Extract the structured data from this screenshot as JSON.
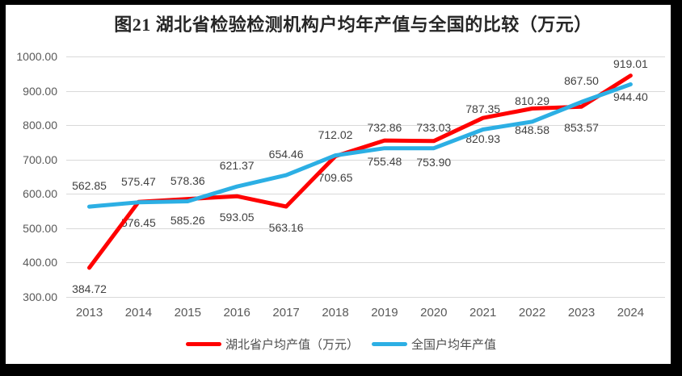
{
  "title": "图21 湖北省检验检测机构户均年产值与全国的比较（万元）",
  "chart_data": {
    "type": "line",
    "title": "图21 湖北省检验检测机构户均年产值与全国的比较（万元）",
    "categories": [
      "2013",
      "2014",
      "2015",
      "2016",
      "2017",
      "2018",
      "2019",
      "2020",
      "2021",
      "2022",
      "2023",
      "2024"
    ],
    "series": [
      {
        "name": "湖北省户均产值（万元）",
        "color": "#FF0000",
        "label_position": "below",
        "values": [
          384.72,
          576.45,
          585.26,
          593.05,
          563.16,
          709.65,
          755.48,
          753.9,
          820.93,
          848.58,
          853.57,
          944.4
        ]
      },
      {
        "name": "全国户均年产值",
        "color": "#2CAFE4",
        "label_position": "above",
        "values": [
          562.85,
          575.47,
          578.36,
          621.37,
          654.46,
          712.02,
          732.86,
          733.03,
          787.35,
          810.29,
          867.5,
          919.01
        ]
      }
    ],
    "ylim": [
      300,
      1000
    ],
    "ytick_labels": [
      "1000.00",
      "900.00",
      "800.00",
      "700.00",
      "600.00",
      "500.00",
      "400.00",
      "300.00"
    ],
    "grid": true,
    "legend_position": "bottom",
    "value_decimals": 2,
    "colors": {
      "grid": "#D9D9D9",
      "axis_text": "#595959",
      "data_label_text": "#404040",
      "title_text": "#262626",
      "frame": "#000000",
      "background": "#FFFFFF"
    }
  }
}
